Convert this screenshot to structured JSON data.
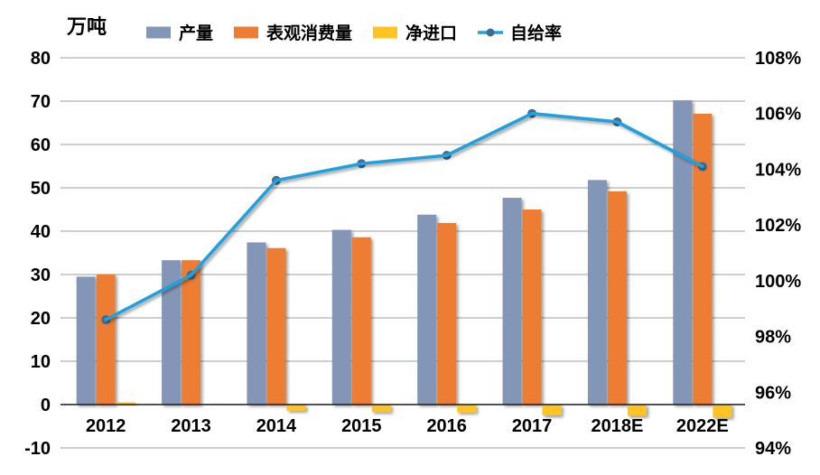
{
  "unit_label": "万吨",
  "colors": {
    "grid": "#9E9E9E",
    "zero_axis": "#1a1a1a",
    "text": "#000000",
    "background": "#ffffff"
  },
  "chart_data": {
    "type": "bar",
    "title": "",
    "xlabel": "",
    "ylabel": "万吨",
    "grid": true,
    "legend_position": "top",
    "categories": [
      "2012",
      "2013",
      "2014",
      "2015",
      "2016",
      "2017",
      "2018E",
      "2022E"
    ],
    "series": [
      {
        "name": "产量",
        "slug": "production",
        "type": "bar",
        "color": "#8496B8",
        "values": [
          29.5,
          33.3,
          37.4,
          40.3,
          43.8,
          47.7,
          51.8,
          70.2
        ]
      },
      {
        "name": "表观消费量",
        "slug": "apparent-consumption",
        "type": "bar",
        "color": "#ED7D31",
        "values": [
          30.1,
          33.3,
          36.1,
          38.6,
          41.9,
          45.0,
          49.2,
          67.1
        ]
      },
      {
        "name": "净进口",
        "slug": "net-imports",
        "type": "bar",
        "color": "#FFC420",
        "values": [
          0.5,
          0.1,
          -1.4,
          -1.7,
          -1.8,
          -2.5,
          -2.6,
          -3.0
        ]
      },
      {
        "name": "自给率",
        "slug": "self-sufficiency-rate",
        "type": "line",
        "axis": "right",
        "color": "#20A0DC",
        "marker_color": "#3E6E96",
        "values": [
          98.6,
          100.2,
          103.6,
          104.2,
          104.5,
          106.0,
          105.7,
          104.1
        ]
      }
    ],
    "left_axis": {
      "min": -10,
      "max": 80,
      "step": 10,
      "ticks": [
        "80",
        "70",
        "60",
        "50",
        "40",
        "30",
        "20",
        "10",
        "0",
        "-10"
      ]
    },
    "right_axis": {
      "min": 94,
      "max": 108,
      "step": 2,
      "ticks": [
        "108%",
        "106%",
        "104%",
        "102%",
        "100%",
        "98%",
        "96%",
        "94%"
      ]
    }
  }
}
